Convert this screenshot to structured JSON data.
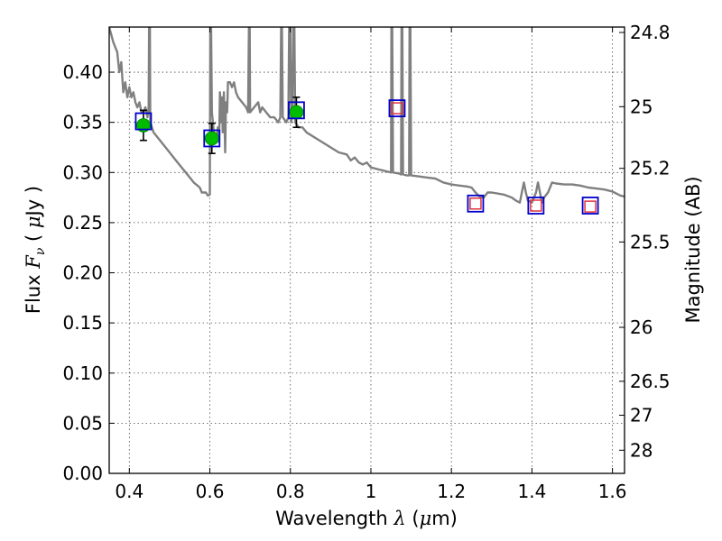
{
  "chart_data": {
    "type": "scatter",
    "xlabel": {
      "prefix": "Wavelength",
      "symbol": "λ",
      "unit_open": " (",
      "unit_mu": "μ",
      "unit_rest": "m)"
    },
    "ylabel": {
      "prefix": "Flux",
      "symbol": "F",
      "subscript": "ν",
      "unit_open": " ( ",
      "unit_mu": "μ",
      "unit_rest": "Jy )"
    },
    "y2label": "Magnitude (AB)",
    "xlim": [
      0.35,
      1.63
    ],
    "ylim": [
      0.0,
      0.445
    ],
    "grid": true,
    "x_ticks": [
      {
        "v": 0.4,
        "label": "0.4"
      },
      {
        "v": 0.6,
        "label": "0.6"
      },
      {
        "v": 0.8,
        "label": "0.8"
      },
      {
        "v": 1.0,
        "label": "1"
      },
      {
        "v": 1.2,
        "label": "1.2"
      },
      {
        "v": 1.4,
        "label": "1.4"
      },
      {
        "v": 1.6,
        "label": "1.6"
      }
    ],
    "y_ticks": [
      {
        "v": 0.0,
        "label": "0.00"
      },
      {
        "v": 0.05,
        "label": "0.05"
      },
      {
        "v": 0.1,
        "label": "0.10"
      },
      {
        "v": 0.15,
        "label": "0.15"
      },
      {
        "v": 0.2,
        "label": "0.20"
      },
      {
        "v": 0.25,
        "label": "0.25"
      },
      {
        "v": 0.3,
        "label": "0.30"
      },
      {
        "v": 0.35,
        "label": "0.35"
      },
      {
        "v": 0.4,
        "label": "0.40"
      }
    ],
    "y2_ticks": [
      {
        "label": "24.8",
        "flux": 0.4396
      },
      {
        "label": "25",
        "flux": 0.3656
      },
      {
        "label": "25.2",
        "flux": 0.3041
      },
      {
        "label": "25.5",
        "flux": 0.2307
      },
      {
        "label": "26",
        "flux": 0.1456
      },
      {
        "label": "26.5",
        "flux": 0.0918
      },
      {
        "label": "27",
        "flux": 0.058
      },
      {
        "label": "28",
        "flux": 0.0231
      }
    ],
    "model_sed": {
      "color": "#808080",
      "points": [
        [
          0.35,
          0.445
        ],
        [
          0.36,
          0.43
        ],
        [
          0.37,
          0.42
        ],
        [
          0.375,
          0.4
        ],
        [
          0.38,
          0.41
        ],
        [
          0.385,
          0.38
        ],
        [
          0.39,
          0.39
        ],
        [
          0.395,
          0.375
        ],
        [
          0.4,
          0.385
        ],
        [
          0.405,
          0.375
        ],
        [
          0.41,
          0.38
        ],
        [
          0.415,
          0.37
        ],
        [
          0.42,
          0.365
        ],
        [
          0.425,
          0.37
        ],
        [
          0.43,
          0.36
        ],
        [
          0.435,
          0.36
        ],
        [
          0.44,
          0.365
        ],
        [
          0.445,
          0.355
        ],
        [
          0.448,
          0.365
        ],
        [
          0.449,
          0.445
        ],
        [
          0.451,
          0.445
        ],
        [
          0.452,
          0.35
        ],
        [
          0.46,
          0.34
        ],
        [
          0.48,
          0.33
        ],
        [
          0.5,
          0.32
        ],
        [
          0.52,
          0.31
        ],
        [
          0.54,
          0.3
        ],
        [
          0.56,
          0.29
        ],
        [
          0.575,
          0.285
        ],
        [
          0.58,
          0.28
        ],
        [
          0.59,
          0.28
        ],
        [
          0.595,
          0.277
        ],
        [
          0.6,
          0.278
        ],
        [
          0.601,
          0.445
        ],
        [
          0.603,
          0.445
        ],
        [
          0.605,
          0.36
        ],
        [
          0.61,
          0.34
        ],
        [
          0.615,
          0.33
        ],
        [
          0.62,
          0.345
        ],
        [
          0.623,
          0.33
        ],
        [
          0.625,
          0.38
        ],
        [
          0.628,
          0.35
        ],
        [
          0.63,
          0.375
        ],
        [
          0.632,
          0.34
        ],
        [
          0.635,
          0.38
        ],
        [
          0.638,
          0.32
        ],
        [
          0.64,
          0.37
        ],
        [
          0.643,
          0.36
        ],
        [
          0.645,
          0.39
        ],
        [
          0.65,
          0.39
        ],
        [
          0.655,
          0.385
        ],
        [
          0.66,
          0.39
        ],
        [
          0.665,
          0.38
        ],
        [
          0.67,
          0.375
        ],
        [
          0.68,
          0.37
        ],
        [
          0.69,
          0.365
        ],
        [
          0.695,
          0.36
        ],
        [
          0.697,
          0.445
        ],
        [
          0.699,
          0.445
        ],
        [
          0.7,
          0.36
        ],
        [
          0.71,
          0.365
        ],
        [
          0.72,
          0.37
        ],
        [
          0.725,
          0.36
        ],
        [
          0.73,
          0.365
        ],
        [
          0.74,
          0.36
        ],
        [
          0.75,
          0.355
        ],
        [
          0.76,
          0.355
        ],
        [
          0.77,
          0.35
        ],
        [
          0.775,
          0.355
        ],
        [
          0.777,
          0.445
        ],
        [
          0.779,
          0.445
        ],
        [
          0.781,
          0.355
        ],
        [
          0.79,
          0.35
        ],
        [
          0.795,
          0.355
        ],
        [
          0.797,
          0.445
        ],
        [
          0.8,
          0.445
        ],
        [
          0.802,
          0.35
        ],
        [
          0.805,
          0.36
        ],
        [
          0.807,
          0.445
        ],
        [
          0.81,
          0.445
        ],
        [
          0.812,
          0.35
        ],
        [
          0.82,
          0.345
        ],
        [
          0.83,
          0.345
        ],
        [
          0.84,
          0.34
        ],
        [
          0.86,
          0.335
        ],
        [
          0.88,
          0.33
        ],
        [
          0.9,
          0.325
        ],
        [
          0.92,
          0.32
        ],
        [
          0.94,
          0.318
        ],
        [
          0.95,
          0.312
        ],
        [
          0.96,
          0.315
        ],
        [
          0.97,
          0.31
        ],
        [
          0.98,
          0.308
        ],
        [
          0.99,
          0.31
        ],
        [
          1.0,
          0.305
        ],
        [
          1.02,
          0.303
        ],
        [
          1.04,
          0.301
        ],
        [
          1.05,
          0.3
        ],
        [
          1.051,
          0.445
        ],
        [
          1.053,
          0.445
        ],
        [
          1.055,
          0.3
        ],
        [
          1.07,
          0.299
        ],
        [
          1.075,
          0.298
        ],
        [
          1.076,
          0.445
        ],
        [
          1.078,
          0.445
        ],
        [
          1.08,
          0.298
        ],
        [
          1.09,
          0.297
        ],
        [
          1.095,
          0.297
        ],
        [
          1.096,
          0.445
        ],
        [
          1.098,
          0.445
        ],
        [
          1.1,
          0.297
        ],
        [
          1.12,
          0.296
        ],
        [
          1.14,
          0.295
        ],
        [
          1.16,
          0.294
        ],
        [
          1.18,
          0.29
        ],
        [
          1.2,
          0.288
        ],
        [
          1.22,
          0.287
        ],
        [
          1.24,
          0.286
        ],
        [
          1.25,
          0.285
        ],
        [
          1.26,
          0.28
        ],
        [
          1.27,
          0.276
        ],
        [
          1.28,
          0.275
        ],
        [
          1.29,
          0.28
        ],
        [
          1.3,
          0.28
        ],
        [
          1.33,
          0.278
        ],
        [
          1.35,
          0.275
        ],
        [
          1.36,
          0.272
        ],
        [
          1.37,
          0.27
        ],
        [
          1.375,
          0.28
        ],
        [
          1.38,
          0.29
        ],
        [
          1.385,
          0.28
        ],
        [
          1.39,
          0.272
        ],
        [
          1.4,
          0.27
        ],
        [
          1.41,
          0.28
        ],
        [
          1.415,
          0.29
        ],
        [
          1.42,
          0.28
        ],
        [
          1.425,
          0.27
        ],
        [
          1.43,
          0.275
        ],
        [
          1.44,
          0.28
        ],
        [
          1.45,
          0.29
        ],
        [
          1.46,
          0.289
        ],
        [
          1.48,
          0.288
        ],
        [
          1.5,
          0.288
        ],
        [
          1.52,
          0.287
        ],
        [
          1.54,
          0.285
        ],
        [
          1.56,
          0.284
        ],
        [
          1.58,
          0.283
        ],
        [
          1.6,
          0.281
        ],
        [
          1.62,
          0.277
        ],
        [
          1.63,
          0.276
        ]
      ]
    },
    "observed": {
      "marker_color": "#00bb00",
      "points": [
        {
          "x": 0.435,
          "y": 0.347,
          "yerr": 0.015
        },
        {
          "x": 0.605,
          "y": 0.334,
          "yerr": 0.015
        },
        {
          "x": 0.815,
          "y": 0.36,
          "yerr": 0.015
        }
      ]
    },
    "model_boxes": {
      "edge_color": "#0000cc",
      "points": [
        {
          "x": 0.435,
          "y": 0.351
        },
        {
          "x": 0.605,
          "y": 0.334
        },
        {
          "x": 0.815,
          "y": 0.362
        },
        {
          "x": 1.065,
          "y": 0.364
        },
        {
          "x": 1.26,
          "y": 0.269
        },
        {
          "x": 1.41,
          "y": 0.267
        },
        {
          "x": 1.545,
          "y": 0.267
        }
      ]
    },
    "upper_limit_boxes": {
      "edge_color": "#dd3344",
      "points": [
        {
          "x": 1.065,
          "y": 0.364
        },
        {
          "x": 1.26,
          "y": 0.269
        },
        {
          "x": 1.41,
          "y": 0.267
        },
        {
          "x": 1.545,
          "y": 0.266
        }
      ]
    }
  }
}
